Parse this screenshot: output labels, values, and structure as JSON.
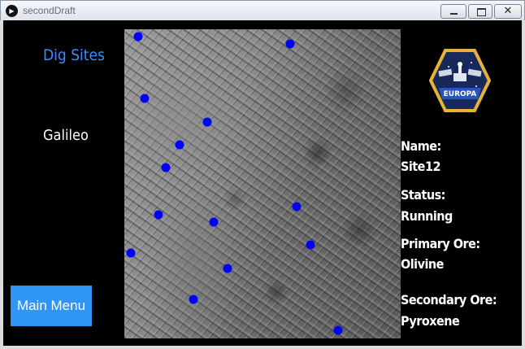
{
  "window": {
    "title": "secondDraft",
    "close_glyph": "✕"
  },
  "app": {
    "dig_sites_label": "Dig Sites",
    "current_site": "Galileo",
    "main_menu_label": "Main Menu",
    "logo_text": "EUROPA",
    "logo_icon": "satellite-icon"
  },
  "colors": {
    "accent": "#3d8bff",
    "button": "#2f95f7",
    "site_marker": "#0000ff",
    "background": "#000000"
  },
  "site_details": {
    "name_label": "Name:",
    "name_value": "Site12",
    "status_label": "Status:",
    "status_value": "Running",
    "primary_ore_label": "Primary Ore:",
    "primary_ore_value": "Olivine",
    "secondary_ore_label": "Secondary Ore:",
    "secondary_ore_value": "Pyroxene"
  }
}
